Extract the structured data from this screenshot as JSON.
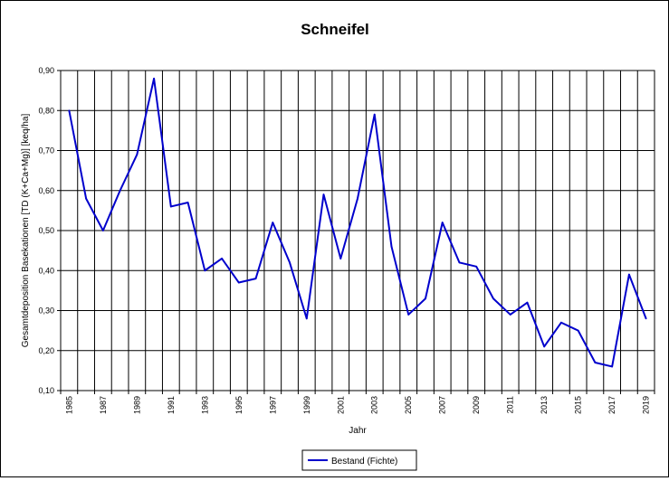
{
  "chart_data": {
    "type": "line",
    "title": "Schneifel",
    "xlabel": "Jahr",
    "ylabel": "Gesamtdeposition Basekationen [TD (K+Ca+Mg)] [keq/ha]",
    "ylim": [
      0.1,
      0.9
    ],
    "xlim": [
      1985,
      2019
    ],
    "y_ticks": [
      "0,10",
      "0,20",
      "0,30",
      "0,40",
      "0,50",
      "0,60",
      "0,70",
      "0,80",
      "0,90"
    ],
    "x_ticks": [
      "1985",
      "1987",
      "1989",
      "1991",
      "1993",
      "1995",
      "1997",
      "1999",
      "2001",
      "2003",
      "2005",
      "2007",
      "2009",
      "2011",
      "2013",
      "2015",
      "2017",
      "2019"
    ],
    "grid": true,
    "legend_position": "bottom-center",
    "series_color": "#0000cc",
    "series": [
      {
        "name": "Bestand (Fichte)",
        "x": [
          1985,
          1986,
          1987,
          1988,
          1989,
          1990,
          1991,
          1992,
          1993,
          1994,
          1995,
          1996,
          1997,
          1998,
          1999,
          2000,
          2001,
          2002,
          2003,
          2004,
          2005,
          2006,
          2007,
          2008,
          2009,
          2010,
          2011,
          2012,
          2013,
          2014,
          2015,
          2016,
          2017,
          2018,
          2019
        ],
        "values": [
          0.8,
          0.58,
          0.5,
          0.6,
          0.69,
          0.88,
          0.56,
          0.57,
          0.4,
          0.43,
          0.37,
          0.38,
          0.52,
          0.42,
          0.28,
          0.59,
          0.43,
          0.58,
          0.79,
          0.46,
          0.29,
          0.33,
          0.52,
          0.42,
          0.41,
          0.33,
          0.29,
          0.32,
          0.21,
          0.27,
          0.25,
          0.17,
          0.16,
          0.39,
          0.28
        ]
      }
    ]
  }
}
